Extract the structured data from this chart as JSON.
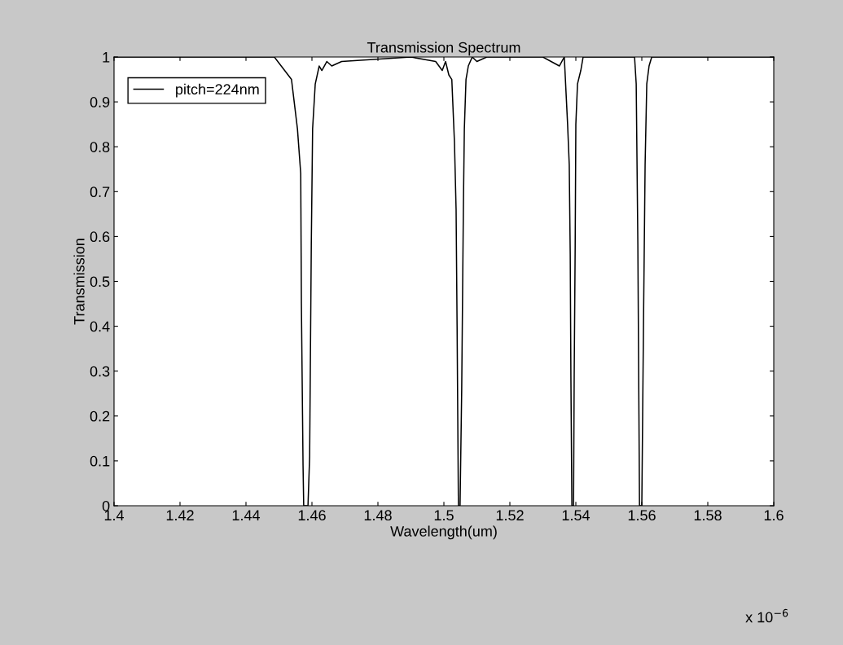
{
  "chart_data": {
    "type": "line",
    "title": "Transmission Spectrum",
    "xlabel": "Wavelength(um)",
    "ylabel": "Transmission",
    "annotations": [
      "x 10$^{−6}$"
    ],
    "series": [
      {
        "name": "pitch=224nm",
        "color": "#000000",
        "x": [
          1.4,
          1.43,
          1.4486,
          1.4538,
          1.4556,
          1.4566,
          1.4568,
          1.4573,
          1.4575,
          1.4588,
          1.4593,
          1.4598,
          1.4602,
          1.461,
          1.4622,
          1.463,
          1.4645,
          1.466,
          1.469,
          1.49,
          1.4975,
          1.4995,
          1.5005,
          1.5015,
          1.5024,
          1.5032,
          1.5037,
          1.504,
          1.5044,
          1.5049,
          1.5054,
          1.5059,
          1.5062,
          1.5067,
          1.5074,
          1.5086,
          1.51,
          1.513,
          1.53,
          1.535,
          1.5365,
          1.5375,
          1.538,
          1.5383,
          1.5385,
          1.5388,
          1.5393,
          1.5395,
          1.5398,
          1.54,
          1.5405,
          1.5415,
          1.5422,
          1.545,
          1.5578,
          1.5583,
          1.5588,
          1.5593,
          1.56,
          1.5605,
          1.561,
          1.5615,
          1.5622,
          1.563,
          1.6
        ],
        "values": [
          1,
          1,
          1,
          0.95,
          0.84,
          0.74,
          0.45,
          0.09,
          0,
          0,
          0.11,
          0.58,
          0.84,
          0.94,
          0.98,
          0.97,
          0.99,
          0.98,
          0.99,
          1,
          0.99,
          0.97,
          0.99,
          0.96,
          0.95,
          0.81,
          0.66,
          0.4,
          0,
          0,
          0.26,
          0.66,
          0.84,
          0.95,
          0.98,
          1,
          0.99,
          1,
          1,
          0.98,
          1,
          0.85,
          0.76,
          0.56,
          0.29,
          0,
          0,
          0.29,
          0.58,
          0.85,
          0.94,
          0.97,
          1,
          1,
          1,
          0.94,
          0.58,
          0,
          0,
          0.4,
          0.76,
          0.94,
          0.98,
          1,
          1
        ]
      }
    ],
    "xlim": [
      1.4,
      1.6
    ],
    "ylim": [
      0,
      1
    ],
    "xticks": [
      1.4,
      1.42,
      1.44,
      1.46,
      1.48,
      1.5,
      1.52,
      1.54,
      1.56,
      1.58,
      1.6
    ],
    "yticks": [
      0,
      0.1,
      0.2,
      0.3,
      0.4,
      0.5,
      0.6,
      0.7,
      0.8,
      0.9,
      1
    ],
    "grid": false,
    "legend": "top left"
  }
}
